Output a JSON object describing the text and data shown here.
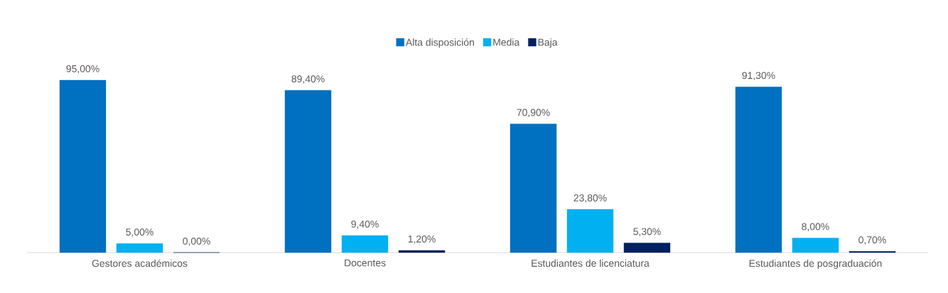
{
  "chart_data": {
    "type": "bar",
    "categories": [
      "Gestores académicos",
      "Docentes",
      "Estudiantes de licenciatura",
      "Estudiantes de posgraduación"
    ],
    "series": [
      {
        "name": "Alta disposición",
        "color": "#0070c0",
        "values": [
          95.0,
          89.4,
          70.9,
          91.3
        ],
        "value_labels": [
          "95,00%",
          "89,40%",
          "70,90%",
          "91,30%"
        ]
      },
      {
        "name": "Media",
        "color": "#00b0f0",
        "values": [
          5.0,
          9.4,
          23.8,
          8.0
        ],
        "value_labels": [
          "5,00%",
          "9,40%",
          "23,80%",
          "8,00%"
        ]
      },
      {
        "name": "Baja",
        "color": "#002060",
        "values": [
          0.0,
          1.2,
          5.3,
          0.7
        ],
        "value_labels": [
          "0,00%",
          "1,20%",
          "5,30%",
          "0,70%"
        ]
      }
    ],
    "tick_labels": "x",
    "legend": "top"
  }
}
